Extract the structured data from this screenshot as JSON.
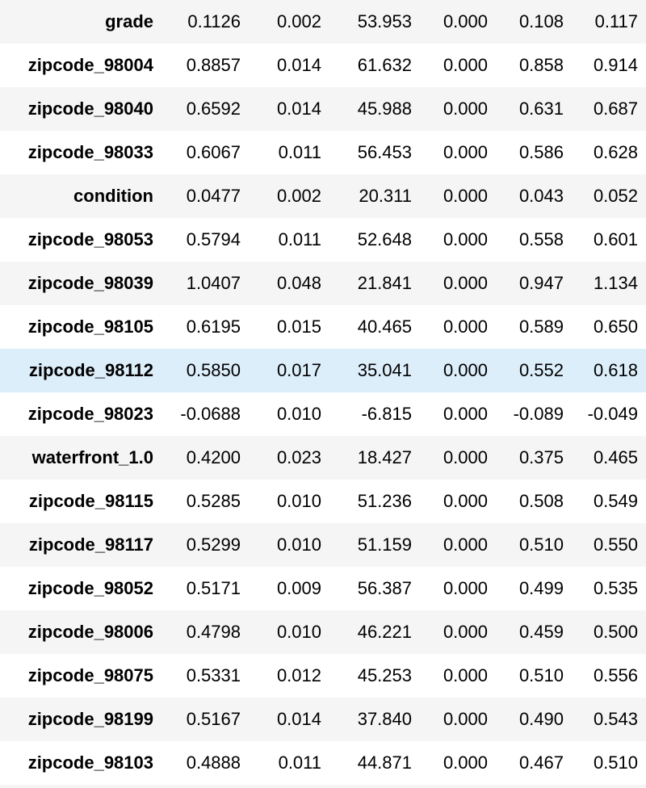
{
  "table": {
    "rows": [
      {
        "label": "grade",
        "coef": "0.1126",
        "std_err": "0.002",
        "z": "53.953",
        "p": "0.000",
        "ci_low": "0.108",
        "ci_high": "0.117"
      },
      {
        "label": "zipcode_98004",
        "coef": "0.8857",
        "std_err": "0.014",
        "z": "61.632",
        "p": "0.000",
        "ci_low": "0.858",
        "ci_high": "0.914"
      },
      {
        "label": "zipcode_98040",
        "coef": "0.6592",
        "std_err": "0.014",
        "z": "45.988",
        "p": "0.000",
        "ci_low": "0.631",
        "ci_high": "0.687"
      },
      {
        "label": "zipcode_98033",
        "coef": "0.6067",
        "std_err": "0.011",
        "z": "56.453",
        "p": "0.000",
        "ci_low": "0.586",
        "ci_high": "0.628"
      },
      {
        "label": "condition",
        "coef": "0.0477",
        "std_err": "0.002",
        "z": "20.311",
        "p": "0.000",
        "ci_low": "0.043",
        "ci_high": "0.052"
      },
      {
        "label": "zipcode_98053",
        "coef": "0.5794",
        "std_err": "0.011",
        "z": "52.648",
        "p": "0.000",
        "ci_low": "0.558",
        "ci_high": "0.601"
      },
      {
        "label": "zipcode_98039",
        "coef": "1.0407",
        "std_err": "0.048",
        "z": "21.841",
        "p": "0.000",
        "ci_low": "0.947",
        "ci_high": "1.134"
      },
      {
        "label": "zipcode_98105",
        "coef": "0.6195",
        "std_err": "0.015",
        "z": "40.465",
        "p": "0.000",
        "ci_low": "0.589",
        "ci_high": "0.650"
      },
      {
        "label": "zipcode_98112",
        "coef": "0.5850",
        "std_err": "0.017",
        "z": "35.041",
        "p": "0.000",
        "ci_low": "0.552",
        "ci_high": "0.618"
      },
      {
        "label": "zipcode_98023",
        "coef": "-0.0688",
        "std_err": "0.010",
        "z": "-6.815",
        "p": "0.000",
        "ci_low": "-0.089",
        "ci_high": "-0.049"
      },
      {
        "label": "waterfront_1.0",
        "coef": "0.4200",
        "std_err": "0.023",
        "z": "18.427",
        "p": "0.000",
        "ci_low": "0.375",
        "ci_high": "0.465"
      },
      {
        "label": "zipcode_98115",
        "coef": "0.5285",
        "std_err": "0.010",
        "z": "51.236",
        "p": "0.000",
        "ci_low": "0.508",
        "ci_high": "0.549"
      },
      {
        "label": "zipcode_98117",
        "coef": "0.5299",
        "std_err": "0.010",
        "z": "51.159",
        "p": "0.000",
        "ci_low": "0.510",
        "ci_high": "0.550"
      },
      {
        "label": "zipcode_98052",
        "coef": "0.5171",
        "std_err": "0.009",
        "z": "56.387",
        "p": "0.000",
        "ci_low": "0.499",
        "ci_high": "0.535"
      },
      {
        "label": "zipcode_98006",
        "coef": "0.4798",
        "std_err": "0.010",
        "z": "46.221",
        "p": "0.000",
        "ci_low": "0.459",
        "ci_high": "0.500"
      },
      {
        "label": "zipcode_98075",
        "coef": "0.5331",
        "std_err": "0.012",
        "z": "45.253",
        "p": "0.000",
        "ci_low": "0.510",
        "ci_high": "0.556"
      },
      {
        "label": "zipcode_98199",
        "coef": "0.5167",
        "std_err": "0.014",
        "z": "37.840",
        "p": "0.000",
        "ci_low": "0.490",
        "ci_high": "0.543"
      },
      {
        "label": "zipcode_98103",
        "coef": "0.4888",
        "std_err": "0.011",
        "z": "44.871",
        "p": "0.000",
        "ci_low": "0.467",
        "ci_high": "0.510"
      }
    ],
    "hovered_row_label": "zipcode_98112",
    "colors": {
      "row_odd": "#f5f5f5",
      "row_even": "#ffffff",
      "row_hover": "#ddeefb",
      "text": "#000000"
    }
  }
}
